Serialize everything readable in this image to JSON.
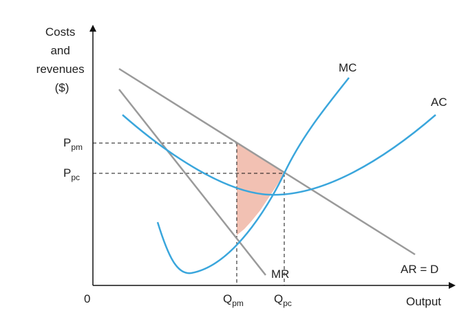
{
  "axes": {
    "y_label_lines": [
      "Costs",
      "and",
      "revenues",
      "($)"
    ],
    "x_label": "Output",
    "origin": "0"
  },
  "curves": {
    "mc": "MC",
    "ac": "AC",
    "mr": "MR",
    "ar": "AR = D"
  },
  "prices": {
    "monopoly": {
      "base": "P",
      "sub": "pm"
    },
    "competitive": {
      "base": "P",
      "sub": "pc"
    }
  },
  "quantities": {
    "monopoly": {
      "base": "Q",
      "sub": "pm"
    },
    "competitive": {
      "base": "Q",
      "sub": "pc"
    }
  },
  "colors": {
    "cost_curves": "#3aa6dc",
    "revenue_curves": "#9a9a9a",
    "deadweight_loss": "#f2c1b3",
    "axes": "#111111"
  }
}
